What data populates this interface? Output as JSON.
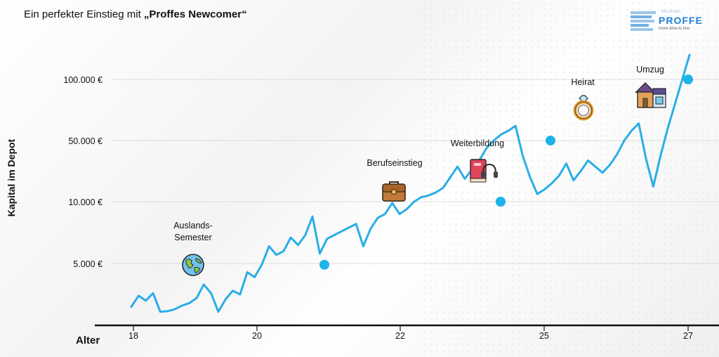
{
  "title": {
    "prefix": "Ein perfekter Einstieg mit",
    "highlight": "„Proffes Newcomer“"
  },
  "logo": {
    "small": "michael",
    "name": "PROFFE",
    "tagline": "more time to live"
  },
  "colors": {
    "line": "#29aee6",
    "marker": "#1fb3ea",
    "grid": "#dddddd",
    "axis": "#111111"
  },
  "chart_data": {
    "type": "line",
    "xlabel": "Alter",
    "ylabel": "Kapital im Depot",
    "y_ticks": [
      "5.000 €",
      "10.000 €",
      "50.000 €",
      "100.000 €"
    ],
    "x_ticks": [
      "18",
      "20",
      "22",
      "25",
      "27"
    ],
    "grid": "horizontal",
    "series": [
      {
        "y": [
          1500,
          2400,
          2000,
          2600,
          1100,
          1150,
          1300,
          1600,
          1800,
          2200,
          3300,
          2600,
          1100,
          2100,
          2800,
          2500,
          4300,
          3900,
          4900,
          6400,
          5700,
          6000,
          7100,
          6500,
          7300,
          8800,
          5800,
          7000,
          7300,
          7600,
          7900,
          8200,
          6400,
          7800,
          8700,
          9000,
          9900,
          9000,
          9400,
          10000,
          13000,
          14000,
          16000,
          19000,
          26000,
          33000,
          25000,
          31000,
          37000,
          45000,
          50000,
          55000,
          58000,
          62000,
          40000,
          26000,
          15000,
          18000,
          22000,
          27000,
          35000,
          24000,
          30000,
          37000,
          33000,
          29000,
          34000,
          41000,
          50000,
          58000,
          64000,
          38000,
          20000,
          40000,
          60000,
          80000,
          100000,
          120000
        ]
      }
    ],
    "markers": [
      {
        "label": "Auslands-\nSemester",
        "value": 4900
      },
      {
        "label": "Berufseinstieg",
        "value": 10000
      },
      {
        "label": "Weiterbildung",
        "value": 10000
      },
      {
        "label": "Heirat",
        "value": 50000
      },
      {
        "label": "Umzug",
        "value": 100000
      }
    ]
  },
  "events": [
    {
      "label": "Auslands-\nSemester",
      "icon": "globe-icon"
    },
    {
      "label": "Berufseinstieg",
      "icon": "briefcase-icon"
    },
    {
      "label": "Weiterbildung",
      "icon": "book-headphones-icon"
    },
    {
      "label": "Heirat",
      "icon": "ring-icon"
    },
    {
      "label": "Umzug",
      "icon": "house-icon"
    }
  ]
}
